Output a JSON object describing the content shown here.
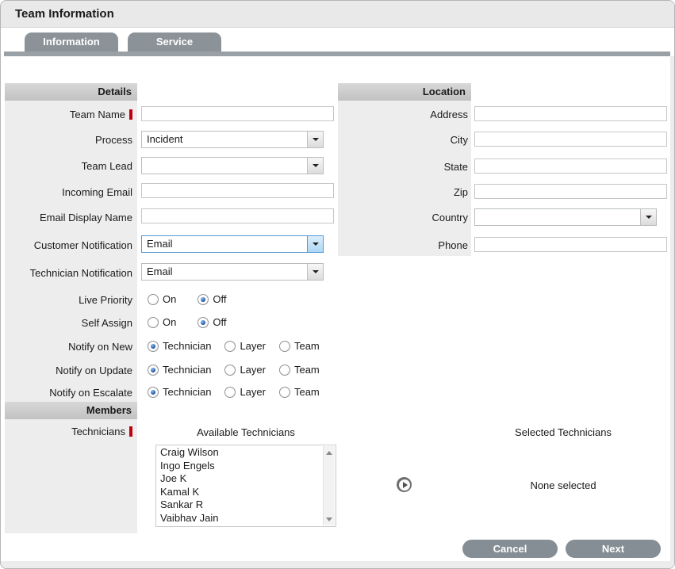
{
  "window": {
    "title": "Team Information"
  },
  "tabs": {
    "information": "Information",
    "service": "Service"
  },
  "details": {
    "header": "Details",
    "team_name": {
      "label": "Team Name",
      "value": ""
    },
    "process": {
      "label": "Process",
      "value": "Incident"
    },
    "team_lead": {
      "label": "Team Lead",
      "value": ""
    },
    "incoming_email": {
      "label": "Incoming Email",
      "value": ""
    },
    "email_display_name": {
      "label": "Email Display Name",
      "value": ""
    },
    "customer_notification": {
      "label": "Customer Notification",
      "value": "Email"
    },
    "technician_notification": {
      "label": "Technician Notification",
      "value": "Email"
    },
    "live_priority": {
      "label": "Live Priority",
      "options": [
        "On",
        "Off"
      ],
      "selected": "Off"
    },
    "self_assign": {
      "label": "Self Assign",
      "options": [
        "On",
        "Off"
      ],
      "selected": "Off"
    },
    "notify_on_new": {
      "label": "Notify on New",
      "options": [
        "Technician",
        "Layer",
        "Team"
      ],
      "selected": "Technician"
    },
    "notify_on_update": {
      "label": "Notify on Update",
      "options": [
        "Technician",
        "Layer",
        "Team"
      ],
      "selected": "Technician"
    },
    "notify_on_escalate": {
      "label": "Notify on Escalate",
      "options": [
        "Technician",
        "Layer",
        "Team"
      ],
      "selected": "Technician"
    }
  },
  "location": {
    "header": "Location",
    "address": {
      "label": "Address",
      "value": ""
    },
    "city": {
      "label": "City",
      "value": ""
    },
    "state": {
      "label": "State",
      "value": ""
    },
    "zip": {
      "label": "Zip",
      "value": ""
    },
    "country": {
      "label": "Country",
      "value": ""
    },
    "phone": {
      "label": "Phone",
      "value": ""
    }
  },
  "members": {
    "header": "Members",
    "technicians_label": "Technicians",
    "available_header": "Available Technicians",
    "selected_header": "Selected Technicians",
    "available": [
      "Craig Wilson",
      "Ingo Engels",
      "Joe K",
      "Kamal K",
      "Sankar R",
      "Vaibhav Jain"
    ],
    "none_selected": "None selected"
  },
  "actions": {
    "cancel": "Cancel",
    "next": "Next"
  },
  "colors": {
    "accent_grey": "#858e94",
    "required_red": "#c2000d",
    "focus_blue": "#569ad4",
    "header_grey": "#c9c9c9"
  }
}
